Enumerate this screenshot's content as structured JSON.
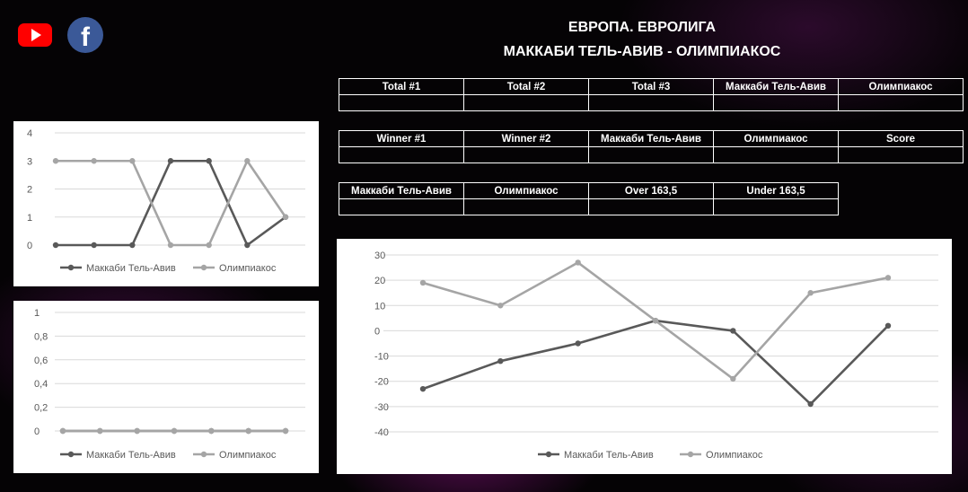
{
  "header": {
    "league": "ЕВРОПА. ЕВРОЛИГА",
    "match": "МАККАБИ ТЕЛЬ-АВИВ - ОЛИМПИАКОС"
  },
  "social": {
    "youtube_icon": "youtube-icon",
    "facebook_icon": "facebook-icon",
    "youtube_color": "#ff0000",
    "facebook_color": "#3b5998"
  },
  "tables": [
    {
      "headers": [
        "Total #1",
        "Total #2",
        "Total #3",
        "Маккаби Тель-Авив",
        "Олимпиакос"
      ],
      "values": [
        "",
        "",
        "",
        "",
        ""
      ]
    },
    {
      "headers": [
        "Winner #1",
        "Winner #2",
        "Маккаби Тель-Авив",
        "Олимпиакос",
        "Score"
      ],
      "values": [
        "",
        "",
        "",
        "",
        ""
      ]
    },
    {
      "headers": [
        "Маккаби Тель-Авив",
        "Олимпиакос",
        "Over 163,5",
        "Under 163,5"
      ],
      "values": [
        "",
        "",
        "",
        ""
      ]
    }
  ],
  "chart_data": [
    {
      "type": "line",
      "x": [
        1,
        2,
        3,
        4,
        5,
        6,
        7
      ],
      "ylim": [
        0,
        4
      ],
      "yticks": [
        "0",
        "1",
        "2",
        "3",
        "4"
      ],
      "grid": true,
      "legend_position": "bottom",
      "series": [
        {
          "name": "Маккаби Тель-Авив",
          "values": [
            0,
            0,
            0,
            3,
            3,
            0,
            1
          ],
          "color": "#595959"
        },
        {
          "name": "Олимпиакос",
          "values": [
            3,
            3,
            3,
            0,
            0,
            3,
            1
          ],
          "color": "#a5a5a5"
        }
      ]
    },
    {
      "type": "line",
      "x": [
        1,
        2,
        3,
        4,
        5,
        6,
        7
      ],
      "ylim": [
        0,
        1
      ],
      "yticks": [
        "0",
        "0,2",
        "0,4",
        "0,6",
        "0,8",
        "1"
      ],
      "grid": true,
      "legend_position": "bottom",
      "series": [
        {
          "name": "Маккаби Тель-Авив",
          "values": [
            0,
            0,
            0,
            0,
            0,
            0,
            0
          ],
          "color": "#595959"
        },
        {
          "name": "Олимпиакос",
          "values": [
            0,
            0,
            0,
            0,
            0,
            0,
            0
          ],
          "color": "#a5a5a5"
        }
      ]
    },
    {
      "type": "line",
      "x": [
        1,
        2,
        3,
        4,
        5,
        6,
        7
      ],
      "ylim": [
        -40,
        30
      ],
      "yticks": [
        "-40",
        "-30",
        "-20",
        "-10",
        "0",
        "10",
        "20",
        "30"
      ],
      "grid": true,
      "legend_position": "bottom",
      "series": [
        {
          "name": "Маккаби Тель-Авив",
          "values": [
            -23,
            -12,
            -5,
            4,
            0,
            -29,
            2
          ],
          "color": "#595959"
        },
        {
          "name": "Олимпиакос",
          "values": [
            19,
            10,
            27,
            4,
            -19,
            15,
            21
          ],
          "color": "#a5a5a5"
        }
      ]
    }
  ]
}
